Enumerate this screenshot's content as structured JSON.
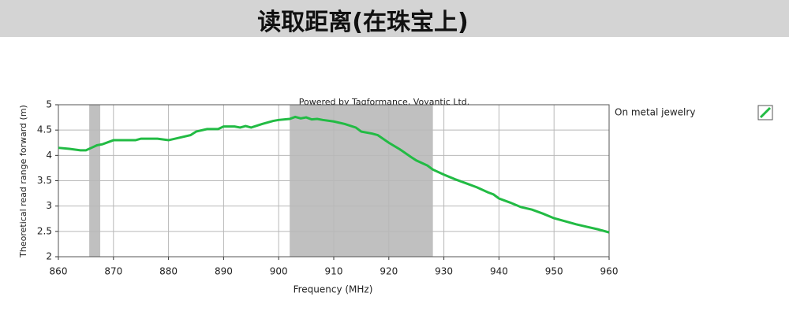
{
  "chart_data": {
    "type": "line",
    "title": "读取距离(在珠宝上)",
    "annotation": "Powered by Tagformance, Voyantic Ltd.",
    "x_label": "Frequency (MHz)",
    "y_label": "Theoretical read range forward (m)",
    "xlim": [
      860,
      960
    ],
    "xticks": [
      860,
      870,
      880,
      890,
      900,
      910,
      920,
      930,
      940,
      950,
      960
    ],
    "ylim": [
      2,
      5
    ],
    "yticks": [
      2,
      2.5,
      3,
      3.5,
      4,
      4.5,
      5
    ],
    "grid": true,
    "shaded_ranges": [
      [
        865.6,
        867.6
      ],
      [
        902,
        928
      ]
    ],
    "shade_color": "#c0c0c0",
    "x": [
      860,
      862,
      864,
      865,
      866,
      867,
      868,
      870,
      872,
      874,
      875,
      878,
      880,
      882,
      884,
      885,
      887,
      889,
      890,
      892,
      893,
      894,
      895,
      897,
      899,
      900,
      902,
      903,
      904,
      905,
      906,
      907,
      908,
      910,
      912,
      914,
      915,
      917,
      918,
      920,
      922,
      924,
      925,
      927,
      928,
      930,
      932,
      934,
      936,
      938,
      939,
      940,
      942,
      944,
      946,
      948,
      950,
      952,
      954,
      956,
      958,
      960
    ],
    "series": [
      {
        "name": "On metal jewelry",
        "color": "#22bb44",
        "values": [
          4.15,
          4.13,
          4.1,
          4.1,
          4.15,
          4.2,
          4.22,
          4.3,
          4.3,
          4.3,
          4.33,
          4.33,
          4.3,
          4.35,
          4.4,
          4.47,
          4.52,
          4.52,
          4.57,
          4.57,
          4.55,
          4.58,
          4.55,
          4.62,
          4.68,
          4.7,
          4.72,
          4.76,
          4.73,
          4.75,
          4.71,
          4.72,
          4.7,
          4.67,
          4.62,
          4.55,
          4.47,
          4.43,
          4.4,
          4.25,
          4.12,
          3.97,
          3.9,
          3.8,
          3.72,
          3.62,
          3.53,
          3.45,
          3.37,
          3.27,
          3.23,
          3.15,
          3.07,
          2.98,
          2.93,
          2.85,
          2.76,
          2.7,
          2.64,
          2.59,
          2.54,
          2.48
        ]
      }
    ]
  }
}
